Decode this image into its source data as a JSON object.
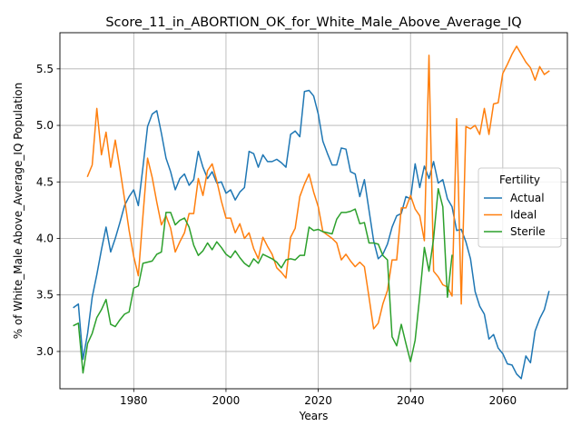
{
  "chart_data": {
    "type": "line",
    "title": "Score_11_in_ABORTION_OK_for_White_Male_Above_Average_IQ",
    "xlabel": "Years",
    "ylabel": "% of White_Male Above_Average_IQ Population",
    "xlim": [
      1964,
      2074
    ],
    "ylim": [
      2.67,
      5.82
    ],
    "xticks": [
      1980,
      2000,
      2020,
      2040,
      2060
    ],
    "yticks": [
      3.0,
      3.5,
      4.0,
      4.5,
      5.0,
      5.5
    ],
    "xtick_labels": [
      "1980",
      "2000",
      "2020",
      "2040",
      "2060"
    ],
    "ytick_labels": [
      "3.0",
      "3.5",
      "4.0",
      "4.5",
      "5.0",
      "5.5"
    ],
    "grid": true,
    "legend": {
      "title": "Fertility",
      "placement": "right"
    },
    "series": [
      {
        "name": "Actual",
        "color": "#1f77b4",
        "x": [
          1967,
          1968,
          1969,
          1970,
          1971,
          1972,
          1973,
          1974,
          1975,
          1976,
          1977,
          1978,
          1979,
          1980,
          1981,
          1982,
          1983,
          1984,
          1985,
          1986,
          1987,
          1988,
          1989,
          1990,
          1991,
          1992,
          1993,
          1994,
          1995,
          1996,
          1997,
          1998,
          1999,
          2000,
          2001,
          2002,
          2003,
          2004,
          2005,
          2006,
          2007,
          2008,
          2009,
          2010,
          2011,
          2012,
          2013,
          2014,
          2015,
          2016,
          2017,
          2018,
          2019,
          2020,
          2021,
          2022,
          2023,
          2024,
          2025,
          2026,
          2027,
          2028,
          2029,
          2030,
          2031,
          2032,
          2033,
          2034,
          2035,
          2036,
          2037,
          2038,
          2039,
          2040,
          2041,
          2042,
          2043,
          2044,
          2045,
          2046,
          2047,
          2048,
          2049,
          2050,
          2051,
          2052,
          2053,
          2054,
          2055,
          2056,
          2057,
          2058,
          2059,
          2060,
          2061,
          2062,
          2063,
          2064,
          2065,
          2066,
          2067,
          2068,
          2069,
          2070
        ],
        "values": [
          3.39,
          3.42,
          2.93,
          3.16,
          3.48,
          3.68,
          3.9,
          4.1,
          3.88,
          4.0,
          4.14,
          4.29,
          4.37,
          4.43,
          4.29,
          4.63,
          4.99,
          5.1,
          5.13,
          4.93,
          4.71,
          4.59,
          4.43,
          4.53,
          4.57,
          4.47,
          4.52,
          4.77,
          4.63,
          4.53,
          4.59,
          4.49,
          4.5,
          4.4,
          4.43,
          4.34,
          4.41,
          4.45,
          4.77,
          4.75,
          4.63,
          4.74,
          4.68,
          4.68,
          4.7,
          4.67,
          4.63,
          4.92,
          4.95,
          4.9,
          5.3,
          5.31,
          5.26,
          5.1,
          4.86,
          4.75,
          4.65,
          4.65,
          4.8,
          4.79,
          4.59,
          4.57,
          4.37,
          4.52,
          4.25,
          3.98,
          3.82,
          3.86,
          3.95,
          4.1,
          4.2,
          4.22,
          4.37,
          4.35,
          4.66,
          4.45,
          4.64,
          4.53,
          4.68,
          4.49,
          4.52,
          4.35,
          4.28,
          4.07,
          4.08,
          3.97,
          3.82,
          3.53,
          3.4,
          3.33,
          3.11,
          3.15,
          3.03,
          2.98,
          2.89,
          2.88,
          2.8,
          2.76,
          2.96,
          2.9,
          3.18,
          3.29,
          3.37,
          3.53
        ]
      },
      {
        "name": "Ideal",
        "color": "#ff7f0e",
        "x": [
          1970,
          1971,
          1972,
          1973,
          1974,
          1975,
          1976,
          1977,
          1978,
          1979,
          1980,
          1981,
          1982,
          1983,
          1984,
          1985,
          1986,
          1987,
          1988,
          1989,
          1990,
          1991,
          1992,
          1993,
          1994,
          1995,
          1996,
          1997,
          1998,
          1999,
          2000,
          2001,
          2002,
          2003,
          2004,
          2005,
          2006,
          2007,
          2008,
          2009,
          2010,
          2011,
          2012,
          2013,
          2014,
          2015,
          2016,
          2017,
          2018,
          2019,
          2020,
          2021,
          2022,
          2023,
          2024,
          2025,
          2026,
          2027,
          2028,
          2029,
          2030,
          2031,
          2032,
          2033,
          2034,
          2035,
          2036,
          2037,
          2038,
          2039,
          2040,
          2041,
          2042,
          2043,
          2044,
          2045,
          2046,
          2047,
          2048,
          2049,
          2050,
          2051,
          2052,
          2053,
          2054,
          2055,
          2056,
          2057,
          2058,
          2059,
          2060,
          2061,
          2062,
          2063,
          2064,
          2065,
          2066,
          2067,
          2068,
          2069,
          2070
        ],
        "values": [
          4.55,
          4.65,
          5.15,
          4.74,
          4.94,
          4.63,
          4.87,
          4.62,
          4.35,
          4.07,
          3.84,
          3.67,
          4.2,
          4.71,
          4.54,
          4.32,
          4.12,
          4.2,
          4.09,
          3.88,
          3.97,
          4.05,
          4.22,
          4.22,
          4.53,
          4.38,
          4.6,
          4.66,
          4.51,
          4.33,
          4.18,
          4.18,
          4.05,
          4.13,
          4.0,
          4.05,
          3.91,
          3.82,
          4.01,
          3.93,
          3.86,
          3.74,
          3.7,
          3.65,
          4.01,
          4.09,
          4.37,
          4.48,
          4.57,
          4.41,
          4.28,
          4.06,
          4.03,
          4.0,
          3.96,
          3.81,
          3.86,
          3.8,
          3.75,
          3.79,
          3.75,
          3.48,
          3.2,
          3.25,
          3.42,
          3.54,
          3.81,
          3.81,
          4.27,
          4.27,
          4.38,
          4.26,
          4.2,
          3.98,
          5.62,
          3.71,
          3.66,
          3.59,
          3.57,
          3.49,
          5.06,
          3.42,
          4.99,
          4.97,
          5.0,
          4.92,
          5.15,
          4.92,
          5.19,
          5.2,
          5.46,
          5.54,
          5.63,
          5.7,
          5.63,
          5.56,
          5.51,
          5.4,
          5.52,
          5.45,
          5.48
        ]
      },
      {
        "name": "Sterile",
        "color": "#2ca02c",
        "x": [
          1967,
          1968,
          1969,
          1970,
          1971,
          1972,
          1973,
          1974,
          1975,
          1976,
          1977,
          1978,
          1979,
          1980,
          1981,
          1982,
          1983,
          1984,
          1985,
          1986,
          1987,
          1988,
          1989,
          1990,
          1991,
          1992,
          1993,
          1994,
          1995,
          1996,
          1997,
          1998,
          1999,
          2000,
          2001,
          2002,
          2003,
          2004,
          2005,
          2006,
          2007,
          2008,
          2009,
          2010,
          2011,
          2012,
          2013,
          2014,
          2015,
          2016,
          2017,
          2018,
          2019,
          2020,
          2021,
          2022,
          2023,
          2024,
          2025,
          2026,
          2027,
          2028,
          2029,
          2030,
          2031,
          2032,
          2033,
          2034,
          2035,
          2036,
          2037,
          2038,
          2039,
          2040,
          2041,
          2042,
          2043,
          2044,
          2045,
          2046,
          2047,
          2048,
          2049
        ],
        "values": [
          3.23,
          3.25,
          2.81,
          3.07,
          3.16,
          3.3,
          3.37,
          3.46,
          3.24,
          3.22,
          3.28,
          3.33,
          3.35,
          3.56,
          3.58,
          3.78,
          3.79,
          3.8,
          3.86,
          3.88,
          4.23,
          4.23,
          4.12,
          4.16,
          4.18,
          4.1,
          3.94,
          3.85,
          3.89,
          3.96,
          3.9,
          3.97,
          3.92,
          3.86,
          3.83,
          3.89,
          3.83,
          3.78,
          3.75,
          3.82,
          3.78,
          3.86,
          3.84,
          3.82,
          3.79,
          3.74,
          3.81,
          3.82,
          3.81,
          3.85,
          3.85,
          4.1,
          4.07,
          4.08,
          4.06,
          4.05,
          4.04,
          4.17,
          4.23,
          4.23,
          4.24,
          4.26,
          4.13,
          4.14,
          3.96,
          3.96,
          3.95,
          3.85,
          3.81,
          3.13,
          3.05,
          3.24,
          3.07,
          2.91,
          3.1,
          3.49,
          3.92,
          3.71,
          4.0,
          4.44,
          4.28,
          3.48,
          3.85
        ]
      }
    ]
  }
}
